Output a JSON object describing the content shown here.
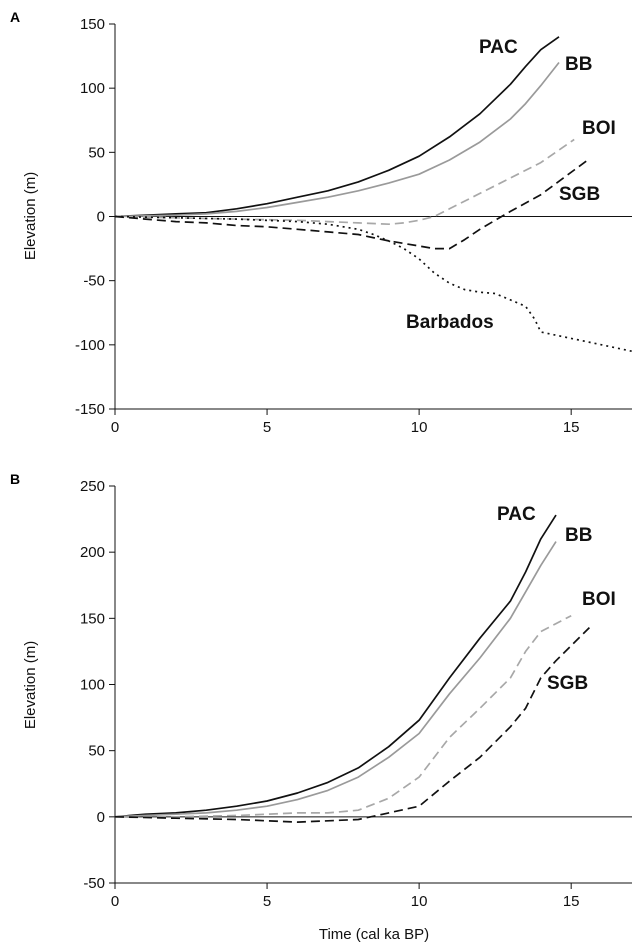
{
  "chart_data": [
    {
      "panel": "A",
      "type": "line",
      "xlabel": "",
      "ylabel": "Elevation (m)",
      "xlim": [
        0,
        17
      ],
      "ylim": [
        -150,
        150
      ],
      "x_ticks": [
        0,
        5,
        10,
        15
      ],
      "x_tick_labels": [
        "0",
        "5",
        "10",
        "15"
      ],
      "y_ticks": [
        150,
        100,
        50,
        0,
        -50,
        -100,
        -150
      ],
      "y_tick_labels": [
        "150",
        "100",
        "50",
        "0",
        "-50",
        "-100",
        "-150"
      ],
      "zero_line": true,
      "series": [
        {
          "name": "PAC",
          "color": "#111111",
          "dash": "solid",
          "x": [
            0,
            1,
            2,
            3,
            4,
            5,
            6,
            7,
            8,
            9,
            10,
            11,
            12,
            13,
            13.5,
            14,
            14.6
          ],
          "y": [
            0,
            1,
            2,
            3,
            6,
            10,
            15,
            20,
            27,
            36,
            47,
            62,
            80,
            103,
            117,
            130,
            140
          ]
        },
        {
          "name": "BB",
          "color": "#9a9a9a",
          "dash": "solid",
          "x": [
            0,
            1,
            2,
            3,
            4,
            5,
            6,
            7,
            8,
            9,
            10,
            11,
            12,
            13,
            13.5,
            14,
            14.6
          ],
          "y": [
            0,
            0.5,
            1,
            2,
            4,
            7,
            11,
            15,
            20,
            26,
            33,
            44,
            58,
            76,
            88,
            102,
            120
          ]
        },
        {
          "name": "BOI",
          "color": "#a8a8a8",
          "dash": "dashed",
          "x": [
            0,
            2,
            4,
            6,
            8,
            9,
            9.5,
            10,
            10.5,
            11,
            12,
            13,
            14,
            15.1
          ],
          "y": [
            0,
            -1,
            -2,
            -3,
            -5,
            -6,
            -5,
            -3,
            0,
            6,
            18,
            30,
            42,
            60
          ]
        },
        {
          "name": "SGB",
          "color": "#111111",
          "dash": "dashed",
          "x": [
            0,
            1,
            2,
            3,
            4,
            5,
            6,
            7,
            8,
            9,
            10,
            10.5,
            11,
            11.5,
            12,
            12.5,
            13,
            14,
            15.6
          ],
          "y": [
            0,
            -2,
            -4,
            -5,
            -7,
            -8,
            -10,
            -12,
            -14,
            -19,
            -23,
            -25,
            -25,
            -18,
            -10,
            -3,
            4,
            17,
            45
          ]
        },
        {
          "name": "Barbados",
          "color": "#111111",
          "dash": "dotted",
          "x": [
            0,
            2,
            4,
            6,
            7,
            8,
            8.5,
            9,
            9.5,
            10,
            10.5,
            11,
            11.5,
            12,
            12.5,
            13,
            13.5,
            13.8,
            14,
            15,
            16,
            17
          ],
          "y": [
            0,
            -1,
            -2,
            -4,
            -6,
            -10,
            -14,
            -19,
            -25,
            -33,
            -44,
            -52,
            -57,
            -59,
            -60,
            -65,
            -70,
            -80,
            -90,
            -95,
            -100,
            -105
          ]
        }
      ]
    },
    {
      "panel": "B",
      "type": "line",
      "xlabel": "Time (cal ka BP)",
      "ylabel": "Elevation (m)",
      "xlim": [
        0,
        17
      ],
      "ylim": [
        -50,
        250
      ],
      "x_ticks": [
        0,
        5,
        10,
        15
      ],
      "x_tick_labels": [
        "0",
        "5",
        "10",
        "15"
      ],
      "y_ticks": [
        250,
        200,
        150,
        100,
        50,
        0,
        -50
      ],
      "y_tick_labels": [
        "250",
        "200",
        "150",
        "100",
        "50",
        "0",
        "-50"
      ],
      "zero_line": true,
      "series": [
        {
          "name": "PAC",
          "color": "#111111",
          "dash": "solid",
          "x": [
            0,
            1,
            2,
            3,
            4,
            5,
            6,
            7,
            8,
            9,
            10,
            11,
            12,
            13,
            13.5,
            14,
            14.5
          ],
          "y": [
            0,
            2,
            3,
            5,
            8,
            12,
            18,
            26,
            37,
            53,
            73,
            105,
            135,
            163,
            185,
            210,
            228
          ]
        },
        {
          "name": "BB",
          "color": "#9a9a9a",
          "dash": "solid",
          "x": [
            0,
            1,
            2,
            3,
            4,
            5,
            6,
            7,
            8,
            9,
            10,
            11,
            12,
            13,
            13.5,
            14,
            14.5
          ],
          "y": [
            0,
            1,
            2,
            3,
            5,
            8,
            13,
            20,
            30,
            45,
            63,
            93,
            120,
            150,
            170,
            190,
            208
          ]
        },
        {
          "name": "BOI",
          "color": "#a8a8a8",
          "dash": "dashed",
          "x": [
            0,
            2,
            4,
            5,
            6,
            7,
            8,
            9,
            10,
            11,
            12,
            13,
            13.5,
            14,
            15
          ],
          "y": [
            0,
            0,
            1,
            2,
            3,
            3,
            5,
            14,
            30,
            60,
            82,
            105,
            125,
            140,
            152
          ]
        },
        {
          "name": "SGB",
          "color": "#111111",
          "dash": "dashed",
          "x": [
            0,
            2,
            4,
            5,
            6,
            7,
            8,
            9,
            10,
            11,
            12,
            13,
            13.5,
            14,
            14.5,
            15.6
          ],
          "y": [
            0,
            -1,
            -2,
            -3,
            -4,
            -3,
            -2,
            3,
            8,
            27,
            45,
            68,
            82,
            105,
            118,
            143
          ]
        }
      ]
    }
  ]
}
